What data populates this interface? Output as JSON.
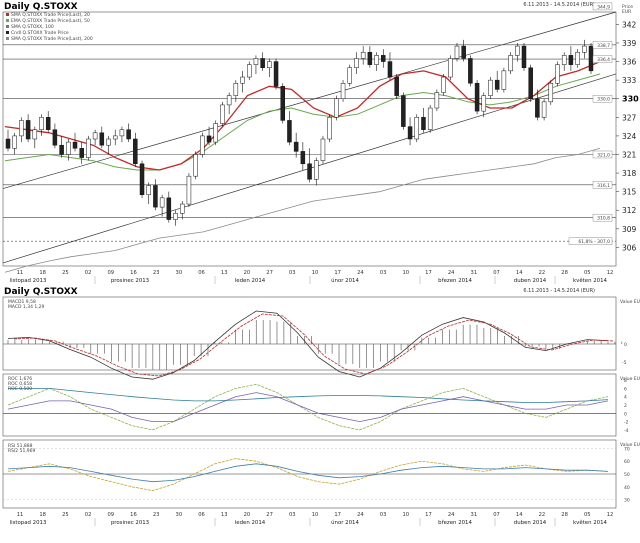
{
  "header": {
    "title": "Daily Q.STOXX",
    "date_range": "6.11.2013 - 14.5.2014 (EUR)",
    "price_label": "Price\nEUR",
    "lower_title": "Daily Q.STOXX",
    "lower_date_range": "6.11.2013 - 14.5.2014 (EUR)"
  },
  "chart_data": [
    {
      "type": "candlestick",
      "title": "Daily Q.STOXX",
      "ylim": [
        303,
        344
      ],
      "y_ticks": [
        306,
        309,
        312,
        315,
        318,
        321,
        324,
        327,
        330,
        333,
        336,
        339,
        342
      ],
      "y_ticks_bold": [
        330
      ],
      "price_boxes": [
        344.9,
        338.7,
        336.4,
        330.0,
        321.0,
        316.1,
        310.8,
        307.0
      ],
      "price_box_labels": [
        "344,9",
        "338,7",
        "336,4",
        "330,0",
        "321,0",
        "316,1",
        "310,8",
        "61,8% - 307,0"
      ],
      "horizontal_levels": [
        338.7,
        336.4,
        330.0,
        321.0,
        316.1,
        310.8,
        307.0
      ],
      "legend": [
        "SMA Q.STOXX Trade Price(Last), 20",
        "EMA Q.STOXX Trade Price(Last), 50",
        "SMA Q.STOXX, 100",
        "Cndl Q.STOXX Trade Price",
        "SMA Q.STOXX Trade Price(Last), 200"
      ],
      "x_tick_labels": [
        "11",
        "18",
        "25",
        "02",
        "09",
        "16",
        "23",
        "30",
        "06",
        "13",
        "20",
        "27",
        "03",
        "10",
        "17",
        "24",
        "03",
        "10",
        "17",
        "24",
        "31",
        "07",
        "14",
        "22",
        "28",
        "05",
        "12"
      ],
      "months": [
        "listopad 2013",
        "prosinec 2013",
        "leden 2014",
        "únor 2014",
        "březen 2014",
        "duben 2014",
        "květen 2014"
      ],
      "series": [
        {
          "name": "SMA Q.STOXX Trade Price(Last), 20",
          "color": "#c62828"
        },
        {
          "name": "EMA Q.STOXX Trade Price(Last), 50",
          "color": "#6aa84f"
        },
        {
          "name": "SMA Q.STOXX Trade Price(Last), 200",
          "color": "#888888"
        }
      ],
      "ohlc": [
        [
          323.5,
          325.0,
          321.5,
          322.0
        ],
        [
          322.0,
          324.5,
          321.0,
          324.0
        ],
        [
          324.0,
          327.0,
          323.0,
          326.5
        ],
        [
          326.5,
          327.5,
          323.0,
          323.5
        ],
        [
          323.5,
          325.5,
          322.0,
          325.0
        ],
        [
          325.0,
          327.5,
          324.0,
          327.0
        ],
        [
          327.0,
          328.0,
          324.5,
          325.0
        ],
        [
          325.0,
          326.0,
          322.0,
          322.5
        ],
        [
          322.5,
          324.0,
          320.5,
          321.0
        ],
        [
          321.0,
          323.5,
          320.0,
          323.0
        ],
        [
          323.0,
          324.5,
          321.5,
          322.0
        ],
        [
          322.0,
          323.0,
          319.5,
          320.5
        ],
        [
          320.5,
          324.0,
          320.0,
          323.5
        ],
        [
          323.5,
          325.0,
          322.5,
          324.5
        ],
        [
          324.5,
          325.5,
          322.0,
          322.5
        ],
        [
          322.5,
          324.0,
          321.0,
          323.5
        ],
        [
          323.5,
          325.0,
          322.5,
          324.0
        ],
        [
          324.0,
          325.5,
          323.0,
          325.0
        ],
        [
          325.0,
          326.0,
          323.0,
          323.5
        ],
        [
          323.5,
          324.5,
          319.0,
          319.5
        ],
        [
          319.5,
          320.0,
          314.0,
          314.5
        ],
        [
          314.5,
          316.5,
          313.0,
          316.0
        ],
        [
          316.0,
          317.0,
          312.0,
          312.5
        ],
        [
          312.5,
          314.5,
          311.0,
          314.0
        ],
        [
          314.0,
          315.0,
          310.0,
          310.5
        ],
        [
          310.5,
          312.0,
          309.5,
          311.5
        ],
        [
          311.5,
          313.5,
          310.5,
          313.0
        ],
        [
          313.0,
          318.0,
          312.5,
          317.5
        ],
        [
          317.5,
          321.5,
          317.0,
          321.0
        ],
        [
          321.0,
          324.5,
          320.5,
          324.0
        ],
        [
          324.0,
          325.5,
          322.5,
          323.0
        ],
        [
          323.0,
          326.5,
          322.5,
          326.0
        ],
        [
          326.0,
          329.5,
          325.5,
          329.0
        ],
        [
          329.0,
          331.0,
          327.5,
          330.5
        ],
        [
          330.5,
          333.0,
          329.5,
          332.5
        ],
        [
          332.5,
          334.5,
          331.0,
          333.5
        ],
        [
          333.5,
          336.0,
          333.0,
          335.5
        ],
        [
          335.5,
          337.0,
          334.0,
          336.5
        ],
        [
          336.5,
          337.5,
          334.5,
          335.0
        ],
        [
          335.0,
          336.5,
          333.5,
          336.0
        ],
        [
          336.0,
          336.5,
          331.5,
          332.0
        ],
        [
          332.0,
          332.5,
          326.0,
          326.5
        ],
        [
          326.5,
          328.0,
          322.5,
          323.0
        ],
        [
          323.0,
          324.5,
          320.5,
          321.5
        ],
        [
          321.5,
          323.0,
          318.5,
          319.5
        ],
        [
          319.5,
          322.0,
          316.5,
          317.0
        ],
        [
          317.0,
          320.5,
          316.0,
          320.0
        ],
        [
          320.0,
          324.0,
          319.5,
          323.5
        ],
        [
          323.5,
          327.5,
          323.0,
          327.0
        ],
        [
          327.0,
          330.5,
          326.5,
          330.0
        ],
        [
          330.0,
          333.0,
          329.5,
          332.5
        ],
        [
          332.5,
          335.5,
          332.0,
          335.0
        ],
        [
          335.0,
          337.5,
          334.0,
          336.5
        ],
        [
          336.5,
          338.5,
          335.5,
          337.5
        ],
        [
          337.5,
          338.5,
          335.0,
          335.5
        ],
        [
          335.5,
          337.5,
          334.5,
          337.0
        ],
        [
          337.0,
          338.0,
          335.0,
          336.0
        ],
        [
          336.0,
          337.5,
          333.0,
          333.5
        ],
        [
          333.5,
          334.0,
          330.0,
          330.5
        ],
        [
          330.5,
          331.0,
          325.0,
          325.5
        ],
        [
          325.5,
          327.0,
          322.5,
          323.5
        ],
        [
          323.5,
          327.5,
          323.0,
          327.0
        ],
        [
          327.0,
          328.5,
          324.5,
          325.0
        ],
        [
          325.0,
          329.0,
          324.5,
          328.5
        ],
        [
          328.5,
          331.5,
          328.0,
          331.0
        ],
        [
          331.0,
          334.0,
          330.5,
          333.5
        ],
        [
          333.5,
          337.0,
          333.0,
          336.5
        ],
        [
          336.5,
          339.0,
          336.0,
          338.5
        ],
        [
          338.5,
          339.5,
          336.0,
          336.5
        ],
        [
          336.5,
          337.0,
          332.0,
          332.5
        ],
        [
          332.5,
          333.0,
          327.5,
          328.0
        ],
        [
          328.0,
          331.0,
          327.0,
          330.5
        ],
        [
          330.5,
          333.5,
          330.0,
          333.0
        ],
        [
          333.0,
          334.5,
          331.0,
          331.5
        ],
        [
          331.5,
          335.0,
          331.0,
          334.5
        ],
        [
          334.5,
          337.5,
          334.0,
          337.0
        ],
        [
          337.0,
          339.0,
          336.0,
          338.5
        ],
        [
          338.5,
          339.0,
          334.5,
          335.0
        ],
        [
          335.0,
          335.5,
          329.5,
          330.0
        ],
        [
          330.0,
          331.5,
          326.5,
          327.0
        ],
        [
          327.0,
          330.0,
          326.5,
          329.5
        ],
        [
          329.5,
          333.0,
          329.0,
          332.5
        ],
        [
          332.5,
          336.0,
          332.0,
          335.5
        ],
        [
          335.5,
          337.5,
          334.5,
          337.0
        ],
        [
          337.0,
          338.5,
          334.5,
          335.5
        ],
        [
          335.5,
          338.0,
          335.0,
          337.5
        ],
        [
          337.5,
          339.5,
          336.5,
          338.5
        ],
        [
          338.5,
          339.0,
          334.0,
          334.5
        ]
      ],
      "ma20": [
        325.5,
        325.0,
        324.5,
        323.5,
        322.5,
        320.5,
        319.0,
        318.5,
        319.5,
        322.0,
        326.0,
        330.5,
        332.0,
        331.5,
        328.5,
        327.0,
        328.5,
        332.0,
        334.0,
        334.5,
        333.5,
        330.0,
        328.5,
        328.5,
        330.5,
        333.5,
        334.5,
        336.0
      ],
      "ema50": [
        320.0,
        320.5,
        321.0,
        320.5,
        320.0,
        319.0,
        318.5,
        318.5,
        319.5,
        321.5,
        324.0,
        326.5,
        328.0,
        328.5,
        327.5,
        327.0,
        327.5,
        329.0,
        330.5,
        331.0,
        330.5,
        329.5,
        329.0,
        329.5,
        330.5,
        332.0,
        333.0,
        334.0
      ],
      "sma200": [
        302.0,
        303.0,
        303.8,
        304.5,
        305.0,
        305.5,
        306.5,
        307.5,
        308.0,
        308.5,
        309.5,
        310.5,
        311.5,
        312.5,
        313.5,
        314.0,
        314.5,
        315.0,
        316.0,
        317.0,
        317.5,
        318.0,
        318.5,
        319.0,
        319.5,
        320.5,
        321.0,
        322.0
      ]
    },
    {
      "type": "histogram",
      "title": "MACD",
      "legend": [
        "MACD1 9,58",
        "MACD 1,34 1,29"
      ],
      "right_labels": [
        "Value EUR",
        "0",
        "-5"
      ],
      "histogram": [
        0.5,
        0.6,
        0.3,
        -0.5,
        -1.2,
        -2.2,
        -3.0,
        -3.2,
        -2.6,
        -1.5,
        0.2,
        1.8,
        3.0,
        2.8,
        1.0,
        -1.2,
        -2.5,
        -3.0,
        -2.2,
        -0.8,
        0.8,
        1.8,
        2.4,
        2.0,
        1.0,
        -0.3,
        -0.6,
        0.0,
        0.4,
        0.3
      ]
    },
    {
      "type": "line",
      "title": "ROC",
      "legend": [
        "ROC 1,676",
        "ROC 0,658",
        "ROC 0,500"
      ],
      "right_labels": [
        "Value EUR",
        "8",
        "6",
        "4",
        "2",
        "0",
        "-2",
        "-4"
      ],
      "ylim": [
        -5,
        9
      ],
      "zero_line": 0
    },
    {
      "type": "line",
      "title": "RSI",
      "legend": [
        "RSI 51,888",
        "RSI2 51,969"
      ],
      "right_labels": [
        "Value EUR",
        "70",
        "60",
        "50",
        "40",
        "30"
      ],
      "ylim": [
        25,
        75
      ],
      "reference_line": 50
    }
  ]
}
